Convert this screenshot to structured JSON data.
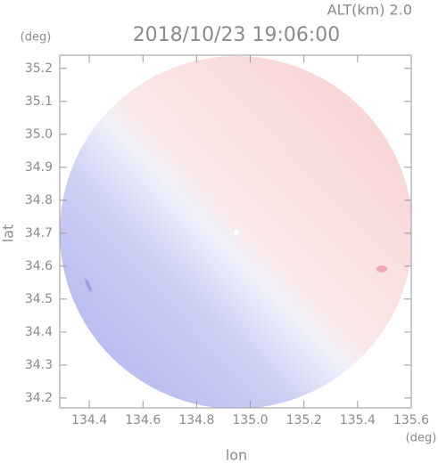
{
  "chart_data": {
    "type": "field",
    "title": "2018/10/23 19:06:00",
    "subtitle": "ALT(km) 2.0",
    "x_label": "lon",
    "y_label": "lat",
    "x_unit": "(deg)",
    "y_unit": "(deg)",
    "xlim": [
      134.29,
      135.6
    ],
    "xticks": [
      134.4,
      134.6,
      134.8,
      {
        "value": 135,
        "label": "135.0"
      },
      135.2,
      135.4,
      135.6
    ],
    "ylim": [
      34.17,
      35.24
    ],
    "yticks": [
      34.2,
      34.3,
      34.4,
      34.5,
      34.6,
      34.7,
      34.8,
      34.9,
      {
        "value": 35,
        "label": "35.0"
      },
      35.1,
      35.2
    ]
  }
}
